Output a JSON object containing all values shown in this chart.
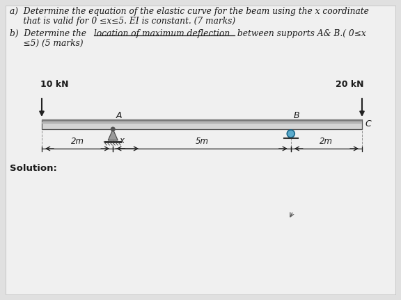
{
  "text_a1": "a)  Determine the equation of the elastic curve for the beam using the x coordinate",
  "text_a2": "     that is valid for 0 ≤x≤5. EI is constant. (7 marks)",
  "text_b_pre": "b)  Determine the ",
  "text_b_ul": "location of maximum deflection",
  "text_b_post": " between supports A& B.( 0≤x",
  "text_b3": "     ≤5) (5 marks)",
  "solution": "Solution:",
  "load_left": "10 kN",
  "load_right": "20 kN",
  "label_A": "A",
  "label_B": "B",
  "label_C": "C",
  "label_x": "x",
  "dim_2m_l": "2m",
  "dim_5m": "5m",
  "dim_2m_r": "2m",
  "bg_color": "#e0e0e0",
  "text_color": "#1a1a1a",
  "beam_face": "#d4d4d4",
  "beam_top_stripe": "#7a7a7a",
  "beam_edge": "#555555",
  "arrow_color": "#222222",
  "pin_color": "#999999",
  "roller_color": "#5aaacc",
  "roller_edge": "#1a6688"
}
